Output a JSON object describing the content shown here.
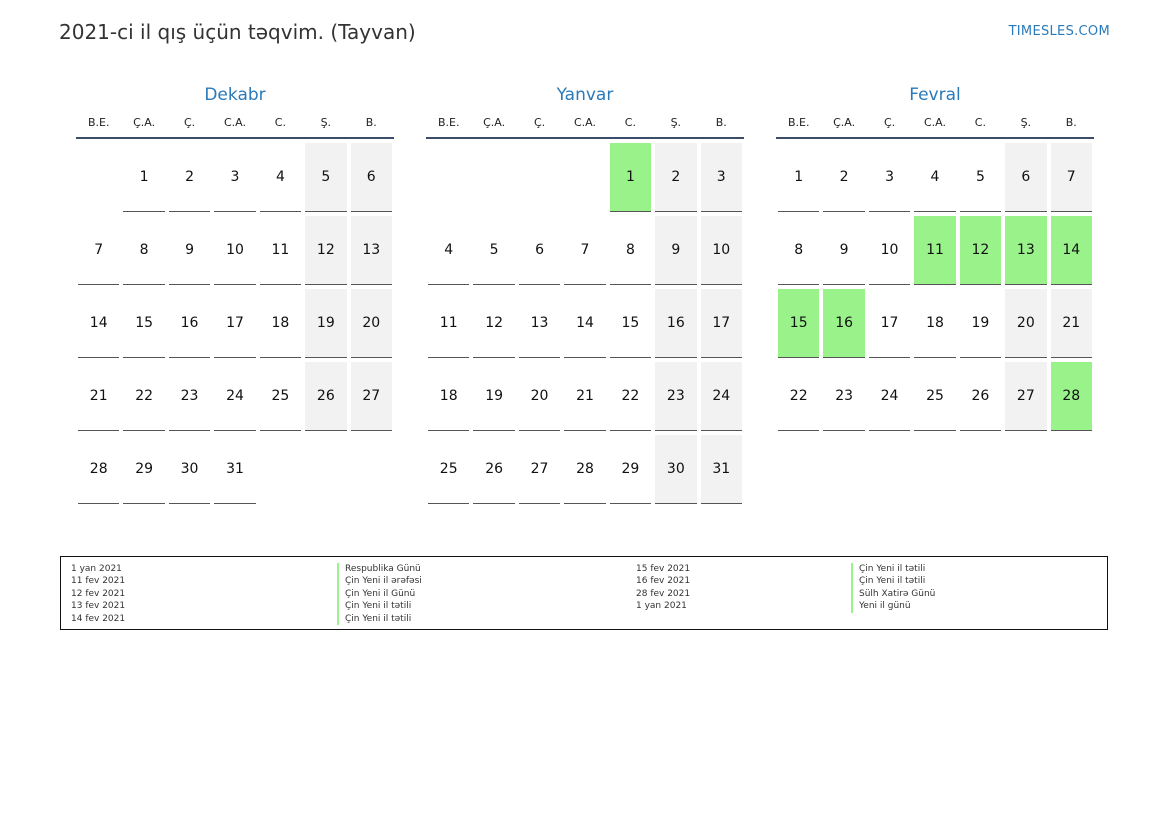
{
  "header": {
    "title": "2021-ci il qış üçün təqvim. (Tayvan)",
    "site": "TIMESLES.COM"
  },
  "weekday_labels": [
    "B.E.",
    "Ç.A.",
    "Ç.",
    "C.A.",
    "C.",
    "Ş.",
    "B."
  ],
  "colors": {
    "accent": "#2a7ab9",
    "holiday": "#99f28a",
    "weekend": "#f2f2f2"
  },
  "months": [
    {
      "name": "Dekabr",
      "offset": 1,
      "days": 31,
      "holidays": []
    },
    {
      "name": "Yanvar",
      "offset": 4,
      "days": 31,
      "holidays": [
        1
      ]
    },
    {
      "name": "Fevral",
      "offset": 0,
      "days": 28,
      "holidays": [
        11,
        12,
        13,
        14,
        15,
        16,
        28
      ]
    }
  ],
  "legend": {
    "left": [
      {
        "date": "1 yan 2021",
        "name": "Respublika Günü"
      },
      {
        "date": "11 fev 2021",
        "name": "Çin Yeni il ərəfəsi"
      },
      {
        "date": "12 fev 2021",
        "name": "Çin Yeni il Günü"
      },
      {
        "date": "13 fev 2021",
        "name": "Çin Yeni il tətili"
      },
      {
        "date": "14 fev 2021",
        "name": "Çin Yeni il tətili"
      }
    ],
    "right": [
      {
        "date": "15 fev 2021",
        "name": "Çin Yeni il tətili"
      },
      {
        "date": "16 fev 2021",
        "name": "Çin Yeni il tətili"
      },
      {
        "date": "28 fev 2021",
        "name": "Sülh Xatirə Günü"
      },
      {
        "date": "1 yan 2021",
        "name": "Yeni il günü"
      }
    ]
  }
}
